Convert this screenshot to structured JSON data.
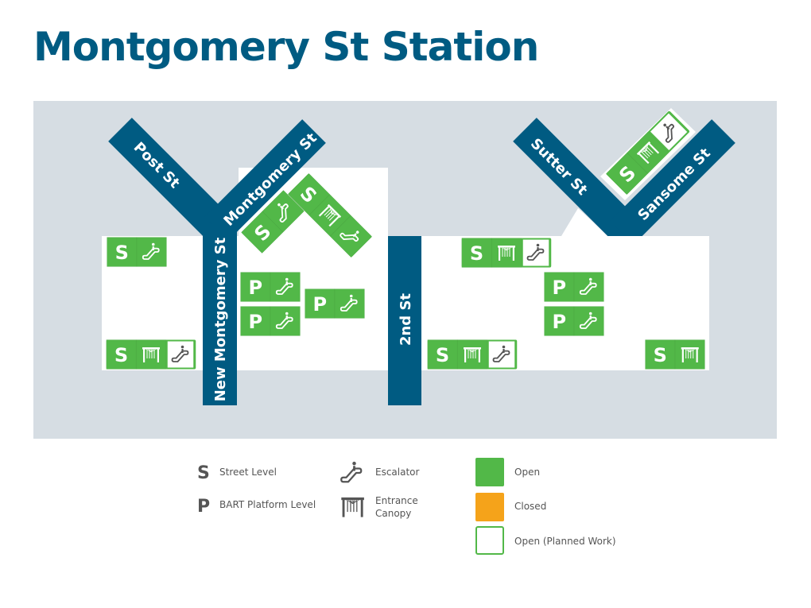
{
  "title": "Montgomery St Station",
  "colors": {
    "street": "#005b82",
    "open": "#52b848",
    "closed": "#f5a31a",
    "background": "#d6dde3",
    "icon_planned": "#555555"
  },
  "streets": {
    "post": "Post St",
    "montgomery": "Montgomery St",
    "new_montgomery": "New Montgomery St",
    "second": "2nd St",
    "sutter": "Sutter St",
    "sansome": "Sansome St"
  },
  "entrances": [
    {
      "cells": [
        {
          "type": "S",
          "status": "open"
        },
        {
          "type": "escalator",
          "status": "open"
        }
      ]
    },
    {
      "cells": [
        {
          "type": "S",
          "status": "open"
        },
        {
          "type": "canopy",
          "status": "open"
        },
        {
          "type": "escalator",
          "status": "planned"
        }
      ]
    },
    {
      "cells": [
        {
          "type": "P",
          "status": "open"
        },
        {
          "type": "escalator",
          "status": "open"
        }
      ]
    },
    {
      "cells": [
        {
          "type": "P",
          "status": "open"
        },
        {
          "type": "escalator",
          "status": "open"
        }
      ]
    },
    {
      "cells": [
        {
          "type": "P",
          "status": "open"
        },
        {
          "type": "escalator",
          "status": "open"
        }
      ]
    },
    {
      "cells": [
        {
          "type": "S",
          "status": "open"
        },
        {
          "type": "escalator",
          "status": "open"
        }
      ]
    },
    {
      "cells": [
        {
          "type": "S",
          "status": "open"
        },
        {
          "type": "canopy",
          "status": "open"
        },
        {
          "type": "escalator",
          "status": "open"
        }
      ]
    },
    {
      "cells": [
        {
          "type": "S",
          "status": "open"
        },
        {
          "type": "canopy",
          "status": "open"
        },
        {
          "type": "escalator",
          "status": "planned"
        }
      ]
    },
    {
      "cells": [
        {
          "type": "P",
          "status": "open"
        },
        {
          "type": "escalator",
          "status": "open"
        }
      ]
    },
    {
      "cells": [
        {
          "type": "P",
          "status": "open"
        },
        {
          "type": "escalator",
          "status": "open"
        }
      ]
    },
    {
      "cells": [
        {
          "type": "S",
          "status": "open"
        },
        {
          "type": "canopy",
          "status": "open"
        },
        {
          "type": "escalator",
          "status": "planned"
        }
      ]
    },
    {
      "cells": [
        {
          "type": "S",
          "status": "open"
        },
        {
          "type": "canopy",
          "status": "open"
        }
      ]
    },
    {
      "cells": [
        {
          "type": "S",
          "status": "open"
        },
        {
          "type": "canopy",
          "status": "open"
        },
        {
          "type": "escalator",
          "status": "planned"
        }
      ]
    }
  ],
  "legend": {
    "street_letter": "S",
    "street_level": "Street Level",
    "platform_letter": "P",
    "platform_level": "BART Platform Level",
    "escalator": "Escalator",
    "canopy_line1": "Entrance",
    "canopy_line2": "Canopy",
    "open": "Open",
    "closed": "Closed",
    "planned": "Open (Planned Work)"
  }
}
